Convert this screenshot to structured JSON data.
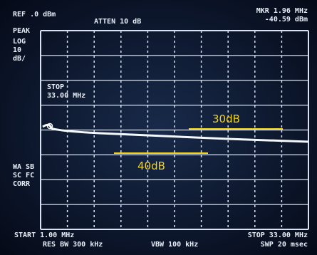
{
  "header": {
    "ref": "REF .0 dBm",
    "atten": "ATTEN 10 dB",
    "marker_freq": "MKR 1.96 MHz",
    "marker_level": "-40.59 dBm"
  },
  "left_panel": {
    "detector": "PEAK",
    "scale": [
      "LOG",
      "10",
      "dB/"
    ],
    "flags": [
      "WA SB",
      "SC FC",
      "CORR"
    ]
  },
  "stop_annotation": {
    "label": "STOP",
    "value": "33.00 MHz"
  },
  "overlays": {
    "upper": "30dB",
    "lower": "40dB"
  },
  "footer": {
    "start": "START 1.00 MHz",
    "stop": "STOP 33.00 MHz",
    "res_bw": "RES BW 300 kHz",
    "vbw": "VBW 100 kHz",
    "sweep": "SWP 20 msec"
  }
}
